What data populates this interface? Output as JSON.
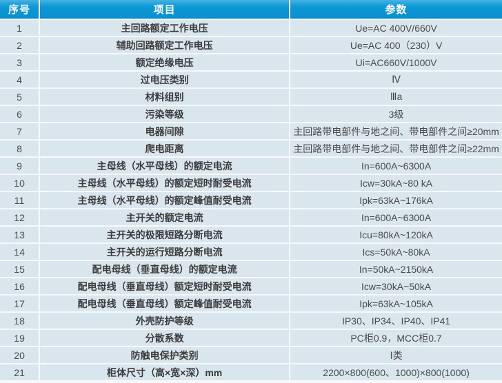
{
  "colors": {
    "header_bg": "#0d98d6",
    "header_bg_highlight": "#46b2e1",
    "header_text": "#ffffff",
    "row_bg": "#d9e6ee",
    "grid_line": "#f5f9fb",
    "item_text": "#3c3c3c",
    "param_text": "#4a4a4a"
  },
  "table": {
    "headers": [
      "序号",
      "项目",
      "参数"
    ],
    "rows": [
      {
        "no": "1",
        "item": "主回路额定工作电压",
        "param": "Ue=AC 400V/660V"
      },
      {
        "no": "2",
        "item": "辅助回路额定工作电压",
        "param": "Ue=AC 400（230）V"
      },
      {
        "no": "3",
        "item": "额定绝缘电压",
        "param": "Ui=AC660V/1000V"
      },
      {
        "no": "4",
        "item": "过电压类别",
        "param": "Ⅳ"
      },
      {
        "no": "5",
        "item": "材料组别",
        "param": "Ⅲa"
      },
      {
        "no": "6",
        "item": "污染等级",
        "param": "3级"
      },
      {
        "no": "7",
        "item": "电器间隙",
        "param": "主回路带电部件与地之间、带电部件之间≥20mm"
      },
      {
        "no": "8",
        "item": "爬电距离",
        "param": "主回路带电部件与地之间、带电部件之间≥22mm"
      },
      {
        "no": "9",
        "item": "主母线（水平母线）的额定电流",
        "param": "In=600A~6300A"
      },
      {
        "no": "10",
        "item": "主母线（水平母线）的额定短时耐受电流",
        "param": "Icw=30kA~80 kA"
      },
      {
        "no": "11",
        "item": "主母线（水平母线）的额定峰值耐受电流",
        "param": "Ipk=63kA~176kA"
      },
      {
        "no": "12",
        "item": "主开关的额定电流",
        "param": "In=600A~6300A"
      },
      {
        "no": "13",
        "item": "主开关的极限短路分断电流",
        "param": "Icu=80kA~120kA"
      },
      {
        "no": "14",
        "item": "主开关的运行短路分断电流",
        "param": "Ics=50kA~80kA"
      },
      {
        "no": "15",
        "item": "配电母线（垂直母线）的额定电流",
        "param": "In=50kA~2150kA"
      },
      {
        "no": "16",
        "item": "配电母线（垂直母线）额定短时耐受电流",
        "param": "Icw=30kA~50kA"
      },
      {
        "no": "17",
        "item": "配电母线（垂直母线）额定峰值耐受电流",
        "param": "Ipk=63kA~105kA"
      },
      {
        "no": "18",
        "item": "外壳防护等级",
        "param": "IP30、IP34、IP40、IP41"
      },
      {
        "no": "19",
        "item": "分散系数",
        "param": "PC柜0.9，MCC柜0.7"
      },
      {
        "no": "20",
        "item": "防触电保护类别",
        "param": "Ⅰ类"
      },
      {
        "no": "21",
        "item": "柜体尺寸（高×宽×深）mm",
        "param": "2200×800(600、1000)×800(1000)"
      }
    ]
  }
}
